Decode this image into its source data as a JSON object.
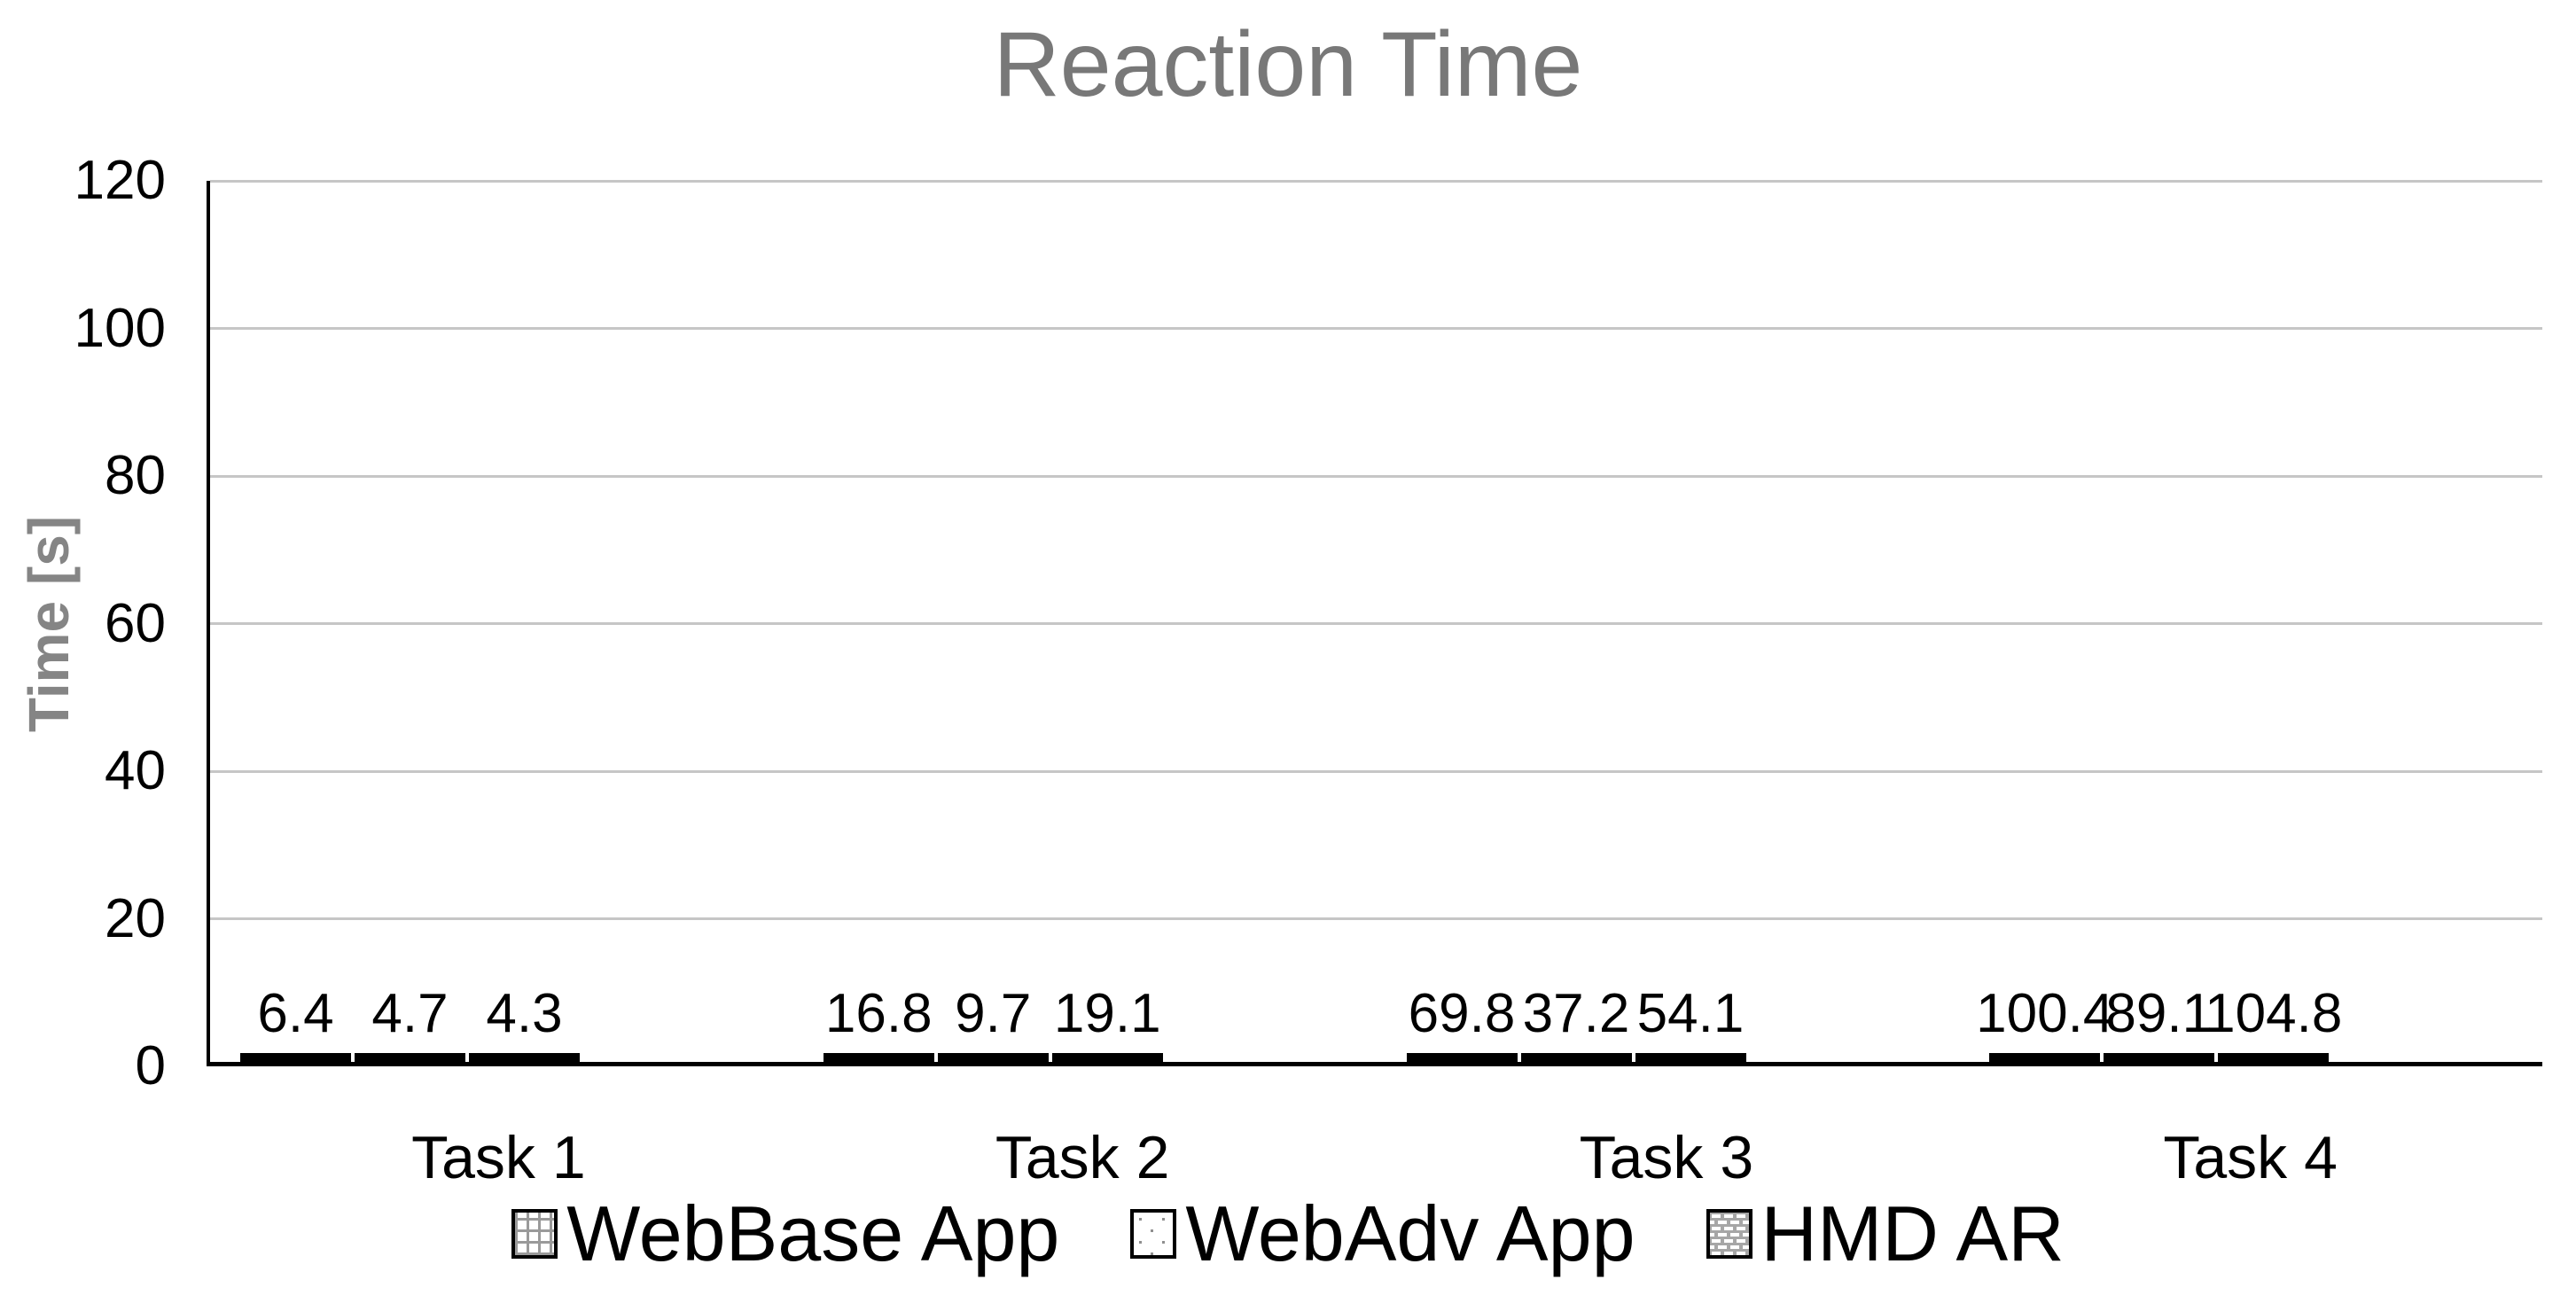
{
  "chart_data": {
    "type": "bar",
    "title": "Reaction Time",
    "ylabel": "Time [s]",
    "xlabel": "",
    "ylim": [
      0,
      120
    ],
    "ytick_step": 20,
    "grid": true,
    "data_labels": true,
    "legend_position": "bottom",
    "categories": [
      "Task 1",
      "Task 2",
      "Task 3",
      "Task 4"
    ],
    "series": [
      {
        "name": "WebBase App",
        "pattern": "grid",
        "values": [
          6.4,
          16.8,
          69.8,
          100.4
        ]
      },
      {
        "name": "WebAdv App",
        "pattern": "dots",
        "values": [
          4.7,
          9.7,
          37.2,
          89.1
        ]
      },
      {
        "name": "HMD AR",
        "pattern": "dashes",
        "values": [
          4.3,
          19.1,
          54.1,
          104.8
        ]
      }
    ]
  },
  "colors": {
    "title_text": "#787878",
    "axis_title_text": "#858585",
    "label_text": "#000000",
    "gridline": "#c6c6c6",
    "axis_line": "#000000",
    "grid_pattern_line": "#9a9a9a",
    "dot_pattern": "#8f8f8f",
    "dash_pattern_bg": "#a6a6a6",
    "dash_pattern_fg": "#ffffff"
  }
}
